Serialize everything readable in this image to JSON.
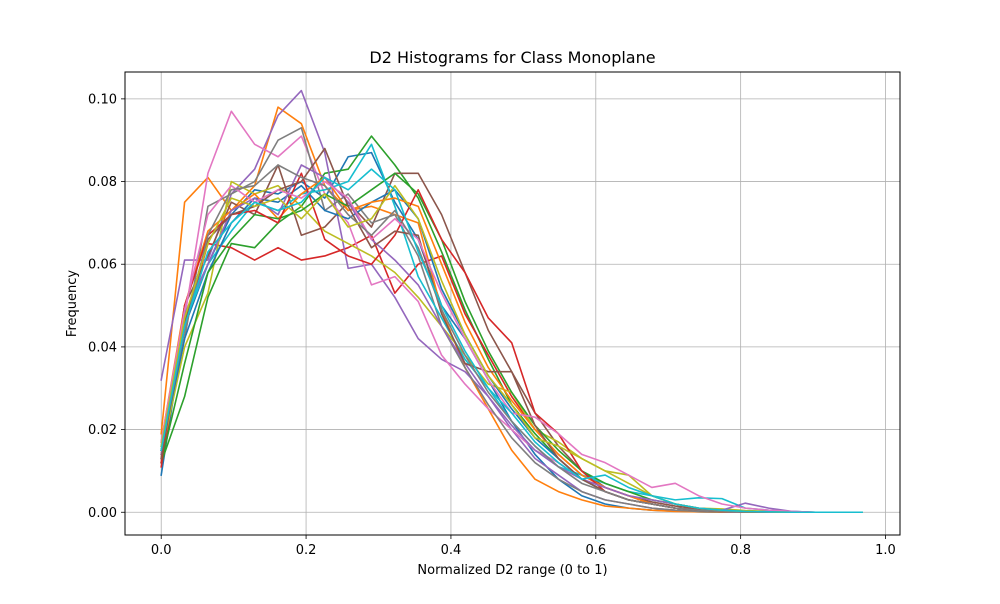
{
  "chart_data": {
    "type": "line",
    "title": "D2 Histograms for Class Monoplane",
    "xlabel": "Normalized D2 range (0 to 1)",
    "ylabel": "Frequency",
    "xlim": [
      -0.05,
      1.02
    ],
    "ylim": [
      -0.0055,
      0.1065
    ],
    "grid": true,
    "xticks": [
      0.0,
      0.2,
      0.4,
      0.6,
      0.8,
      1.0
    ],
    "xtick_labels": [
      "0.0",
      "0.2",
      "0.4",
      "0.6",
      "0.8",
      "1.0"
    ],
    "yticks": [
      0.0,
      0.02,
      0.04,
      0.06,
      0.08,
      0.1
    ],
    "ytick_labels": [
      "0.00",
      "0.02",
      "0.04",
      "0.06",
      "0.08",
      "0.10"
    ],
    "x": [
      0.0,
      0.0323,
      0.0645,
      0.0968,
      0.129,
      0.1613,
      0.1935,
      0.2258,
      0.2581,
      0.2903,
      0.3226,
      0.3548,
      0.3871,
      0.4194,
      0.4516,
      0.4839,
      0.5161,
      0.5484,
      0.5806,
      0.6129,
      0.6452,
      0.6774,
      0.7097,
      0.7419,
      0.7742,
      0.8065,
      0.8387,
      0.871,
      0.9032,
      0.9355,
      0.9677
    ],
    "series": [
      {
        "color": "#1f77b4",
        "values": [
          0.009,
          0.045,
          0.06,
          0.072,
          0.078,
          0.077,
          0.08,
          0.076,
          0.086,
          0.087,
          0.075,
          0.066,
          0.05,
          0.042,
          0.032,
          0.022,
          0.014,
          0.008,
          0.004,
          0.002,
          0.001,
          0.0005,
          0.0003,
          0.0001,
          0.0,
          0.0,
          0.0,
          0.0,
          0.0,
          0.0,
          0.0
        ]
      },
      {
        "color": "#ff7f0e",
        "values": [
          0.019,
          0.075,
          0.081,
          0.073,
          0.079,
          0.098,
          0.094,
          0.079,
          0.073,
          0.074,
          0.072,
          0.07,
          0.049,
          0.035,
          0.025,
          0.015,
          0.008,
          0.005,
          0.003,
          0.0015,
          0.001,
          0.0005,
          0.0002,
          0.0001,
          0.0,
          0.0,
          0.0,
          0.0,
          0.0,
          0.0,
          0.0
        ]
      },
      {
        "color": "#2ca02c",
        "values": [
          0.012,
          0.028,
          0.052,
          0.065,
          0.064,
          0.07,
          0.074,
          0.082,
          0.083,
          0.091,
          0.084,
          0.076,
          0.063,
          0.049,
          0.037,
          0.026,
          0.019,
          0.013,
          0.008,
          0.005,
          0.003,
          0.002,
          0.001,
          0.0005,
          0.0002,
          0.0001,
          0.0,
          0.0,
          0.0,
          0.0,
          0.0
        ]
      },
      {
        "color": "#d62728",
        "values": [
          0.011,
          0.045,
          0.065,
          0.064,
          0.061,
          0.064,
          0.061,
          0.062,
          0.064,
          0.067,
          0.053,
          0.06,
          0.062,
          0.048,
          0.038,
          0.028,
          0.02,
          0.014,
          0.009,
          0.006,
          0.004,
          0.002,
          0.001,
          0.0005,
          0.0002,
          0.0001,
          0.0,
          0.0,
          0.0,
          0.0,
          0.0
        ]
      },
      {
        "color": "#9467bd",
        "values": [
          0.032,
          0.061,
          0.061,
          0.077,
          0.083,
          0.096,
          0.102,
          0.087,
          0.059,
          0.06,
          0.052,
          0.042,
          0.037,
          0.034,
          0.028,
          0.02,
          0.013,
          0.009,
          0.005,
          0.003,
          0.002,
          0.001,
          0.0005,
          0.0003,
          0.0001,
          0.0,
          0.0,
          0.0,
          0.0,
          0.0,
          0.0
        ]
      },
      {
        "color": "#8c564b",
        "values": [
          0.013,
          0.05,
          0.062,
          0.075,
          0.072,
          0.084,
          0.067,
          0.069,
          0.075,
          0.069,
          0.082,
          0.082,
          0.072,
          0.058,
          0.044,
          0.034,
          0.024,
          0.016,
          0.01,
          0.006,
          0.004,
          0.0025,
          0.0015,
          0.0008,
          0.0004,
          0.0002,
          0.0001,
          0.0,
          0.0,
          0.0,
          0.0
        ]
      },
      {
        "color": "#e377c2",
        "values": [
          0.015,
          0.047,
          0.082,
          0.097,
          0.089,
          0.086,
          0.091,
          0.077,
          0.07,
          0.055,
          0.057,
          0.051,
          0.038,
          0.031,
          0.025,
          0.02,
          0.015,
          0.012,
          0.008,
          0.006,
          0.004,
          0.003,
          0.002,
          0.001,
          0.0005,
          0.0003,
          0.0001,
          0.0,
          0.0,
          0.0,
          0.0
        ]
      },
      {
        "color": "#7f7f7f",
        "values": [
          0.014,
          0.042,
          0.074,
          0.077,
          0.08,
          0.09,
          0.093,
          0.073,
          0.077,
          0.07,
          0.072,
          0.062,
          0.045,
          0.035,
          0.026,
          0.018,
          0.012,
          0.008,
          0.005,
          0.003,
          0.002,
          0.001,
          0.0005,
          0.0002,
          0.0001,
          0.0,
          0.0,
          0.0,
          0.0,
          0.0,
          0.0
        ]
      },
      {
        "color": "#bcbd22",
        "values": [
          0.014,
          0.04,
          0.053,
          0.08,
          0.077,
          0.079,
          0.074,
          0.068,
          0.065,
          0.062,
          0.058,
          0.052,
          0.045,
          0.038,
          0.031,
          0.029,
          0.02,
          0.017,
          0.013,
          0.01,
          0.009,
          0.004,
          0.002,
          0.001,
          0.0008,
          0.0004,
          0.0002,
          0.0001,
          0.0,
          0.0,
          0.0
        ]
      },
      {
        "color": "#17becf",
        "values": [
          0.016,
          0.046,
          0.06,
          0.068,
          0.075,
          0.073,
          0.077,
          0.078,
          0.08,
          0.089,
          0.074,
          0.057,
          0.047,
          0.037,
          0.03,
          0.022,
          0.016,
          0.011,
          0.009,
          0.007,
          0.005,
          0.004,
          0.003,
          0.0035,
          0.0033,
          0.001,
          0.0005,
          0.0002,
          0.0,
          0.0,
          0.0
        ]
      },
      {
        "color": "#1f77b4",
        "values": [
          0.015,
          0.042,
          0.058,
          0.07,
          0.076,
          0.075,
          0.079,
          0.073,
          0.071,
          0.075,
          0.078,
          0.071,
          0.054,
          0.043,
          0.033,
          0.025,
          0.018,
          0.013,
          0.008,
          0.005,
          0.003,
          0.002,
          0.001,
          0.0005,
          0.0002,
          0.0001,
          0.0,
          0.0,
          0.0,
          0.0,
          0.0
        ]
      },
      {
        "color": "#ff7f0e",
        "values": [
          0.017,
          0.05,
          0.068,
          0.073,
          0.077,
          0.071,
          0.077,
          0.081,
          0.073,
          0.075,
          0.076,
          0.074,
          0.06,
          0.046,
          0.035,
          0.027,
          0.02,
          0.014,
          0.009,
          0.006,
          0.004,
          0.002,
          0.001,
          0.0005,
          0.0002,
          0.0001,
          0.0,
          0.0,
          0.0,
          0.0,
          0.0
        ]
      },
      {
        "color": "#2ca02c",
        "values": [
          0.012,
          0.036,
          0.058,
          0.066,
          0.072,
          0.071,
          0.073,
          0.077,
          0.074,
          0.078,
          0.082,
          0.077,
          0.066,
          0.051,
          0.039,
          0.029,
          0.021,
          0.015,
          0.01,
          0.007,
          0.005,
          0.003,
          0.002,
          0.001,
          0.0005,
          0.0002,
          0.0001,
          0.0,
          0.0,
          0.0,
          0.0
        ]
      },
      {
        "color": "#d62728",
        "values": [
          0.012,
          0.05,
          0.067,
          0.072,
          0.073,
          0.07,
          0.082,
          0.066,
          0.062,
          0.06,
          0.067,
          0.078,
          0.066,
          0.058,
          0.047,
          0.041,
          0.024,
          0.019,
          0.01,
          0.005,
          0.003,
          0.002,
          0.001,
          0.0005,
          0.0002,
          0.0001,
          0.0,
          0.0,
          0.0,
          0.0,
          0.0
        ]
      },
      {
        "color": "#9467bd",
        "values": [
          0.014,
          0.048,
          0.06,
          0.073,
          0.076,
          0.072,
          0.084,
          0.081,
          0.075,
          0.066,
          0.061,
          0.055,
          0.045,
          0.036,
          0.028,
          0.021,
          0.015,
          0.011,
          0.008,
          0.006,
          0.004,
          0.003,
          0.002,
          0.001,
          0.0005,
          0.0022,
          0.001,
          0.0002,
          0.0,
          0.0,
          0.0
        ]
      },
      {
        "color": "#8c564b",
        "values": [
          0.013,
          0.046,
          0.066,
          0.072,
          0.074,
          0.078,
          0.08,
          0.088,
          0.074,
          0.064,
          0.068,
          0.067,
          0.048,
          0.036,
          0.034,
          0.034,
          0.021,
          0.013,
          0.008,
          0.005,
          0.003,
          0.002,
          0.001,
          0.0005,
          0.0002,
          0.0001,
          0.0,
          0.0,
          0.0,
          0.0,
          0.0
        ]
      },
      {
        "color": "#e377c2",
        "values": [
          0.017,
          0.049,
          0.072,
          0.079,
          0.075,
          0.078,
          0.076,
          0.08,
          0.076,
          0.066,
          0.071,
          0.066,
          0.053,
          0.042,
          0.032,
          0.024,
          0.023,
          0.019,
          0.014,
          0.012,
          0.009,
          0.006,
          0.007,
          0.004,
          0.002,
          0.001,
          0.0005,
          0.0002,
          0.0,
          0.0,
          0.0
        ]
      },
      {
        "color": "#7f7f7f",
        "values": [
          0.015,
          0.044,
          0.067,
          0.078,
          0.079,
          0.084,
          0.081,
          0.079,
          0.072,
          0.067,
          0.073,
          0.064,
          0.049,
          0.038,
          0.029,
          0.022,
          0.016,
          0.011,
          0.007,
          0.005,
          0.003,
          0.002,
          0.001,
          0.0005,
          0.0002,
          0.0001,
          0.0,
          0.0,
          0.0,
          0.0,
          0.0
        ]
      },
      {
        "color": "#bcbd22",
        "values": [
          0.016,
          0.047,
          0.065,
          0.076,
          0.074,
          0.076,
          0.071,
          0.077,
          0.069,
          0.071,
          0.079,
          0.071,
          0.056,
          0.043,
          0.033,
          0.026,
          0.018,
          0.016,
          0.013,
          0.01,
          0.007,
          0.004,
          0.002,
          0.001,
          0.0005,
          0.0002,
          0.0001,
          0.0,
          0.0,
          0.0,
          0.0
        ]
      },
      {
        "color": "#17becf",
        "values": [
          0.015,
          0.045,
          0.063,
          0.07,
          0.075,
          0.073,
          0.075,
          0.081,
          0.078,
          0.083,
          0.078,
          0.063,
          0.05,
          0.039,
          0.03,
          0.024,
          0.017,
          0.012,
          0.008,
          0.009,
          0.006,
          0.004,
          0.002,
          0.001,
          0.0005,
          0.0002,
          0.0001,
          0.0,
          0.0,
          0.0,
          0.0
        ]
      }
    ]
  }
}
